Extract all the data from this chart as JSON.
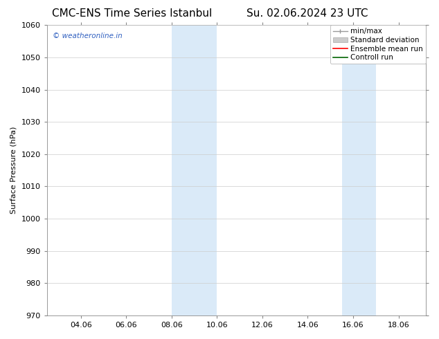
{
  "title_left": "CMC-ENS Time Series Istanbul",
  "title_right": "Su. 02.06.2024 23 UTC",
  "ylabel": "Surface Pressure (hPa)",
  "ylim": [
    970,
    1060
  ],
  "yticks": [
    970,
    980,
    990,
    1000,
    1010,
    1020,
    1030,
    1040,
    1050,
    1060
  ],
  "xlim_start": 2.5,
  "xlim_end": 19.2,
  "xtick_labels": [
    "04.06",
    "06.06",
    "08.06",
    "10.06",
    "12.06",
    "14.06",
    "16.06",
    "18.06"
  ],
  "xtick_positions": [
    4.0,
    6.0,
    8.0,
    10.0,
    12.0,
    14.0,
    16.0,
    18.0
  ],
  "shaded_bands": [
    {
      "x_start": 8.0,
      "x_end": 10.0
    },
    {
      "x_start": 15.5,
      "x_end": 17.0
    }
  ],
  "shaded_color": "#daeaf8",
  "background_color": "#ffffff",
  "watermark_text": "© weatheronline.in",
  "watermark_color": "#3060c0",
  "grid_color": "#cccccc",
  "title_fontsize": 11,
  "axis_label_fontsize": 8,
  "tick_fontsize": 8,
  "legend_fontsize": 7.5
}
